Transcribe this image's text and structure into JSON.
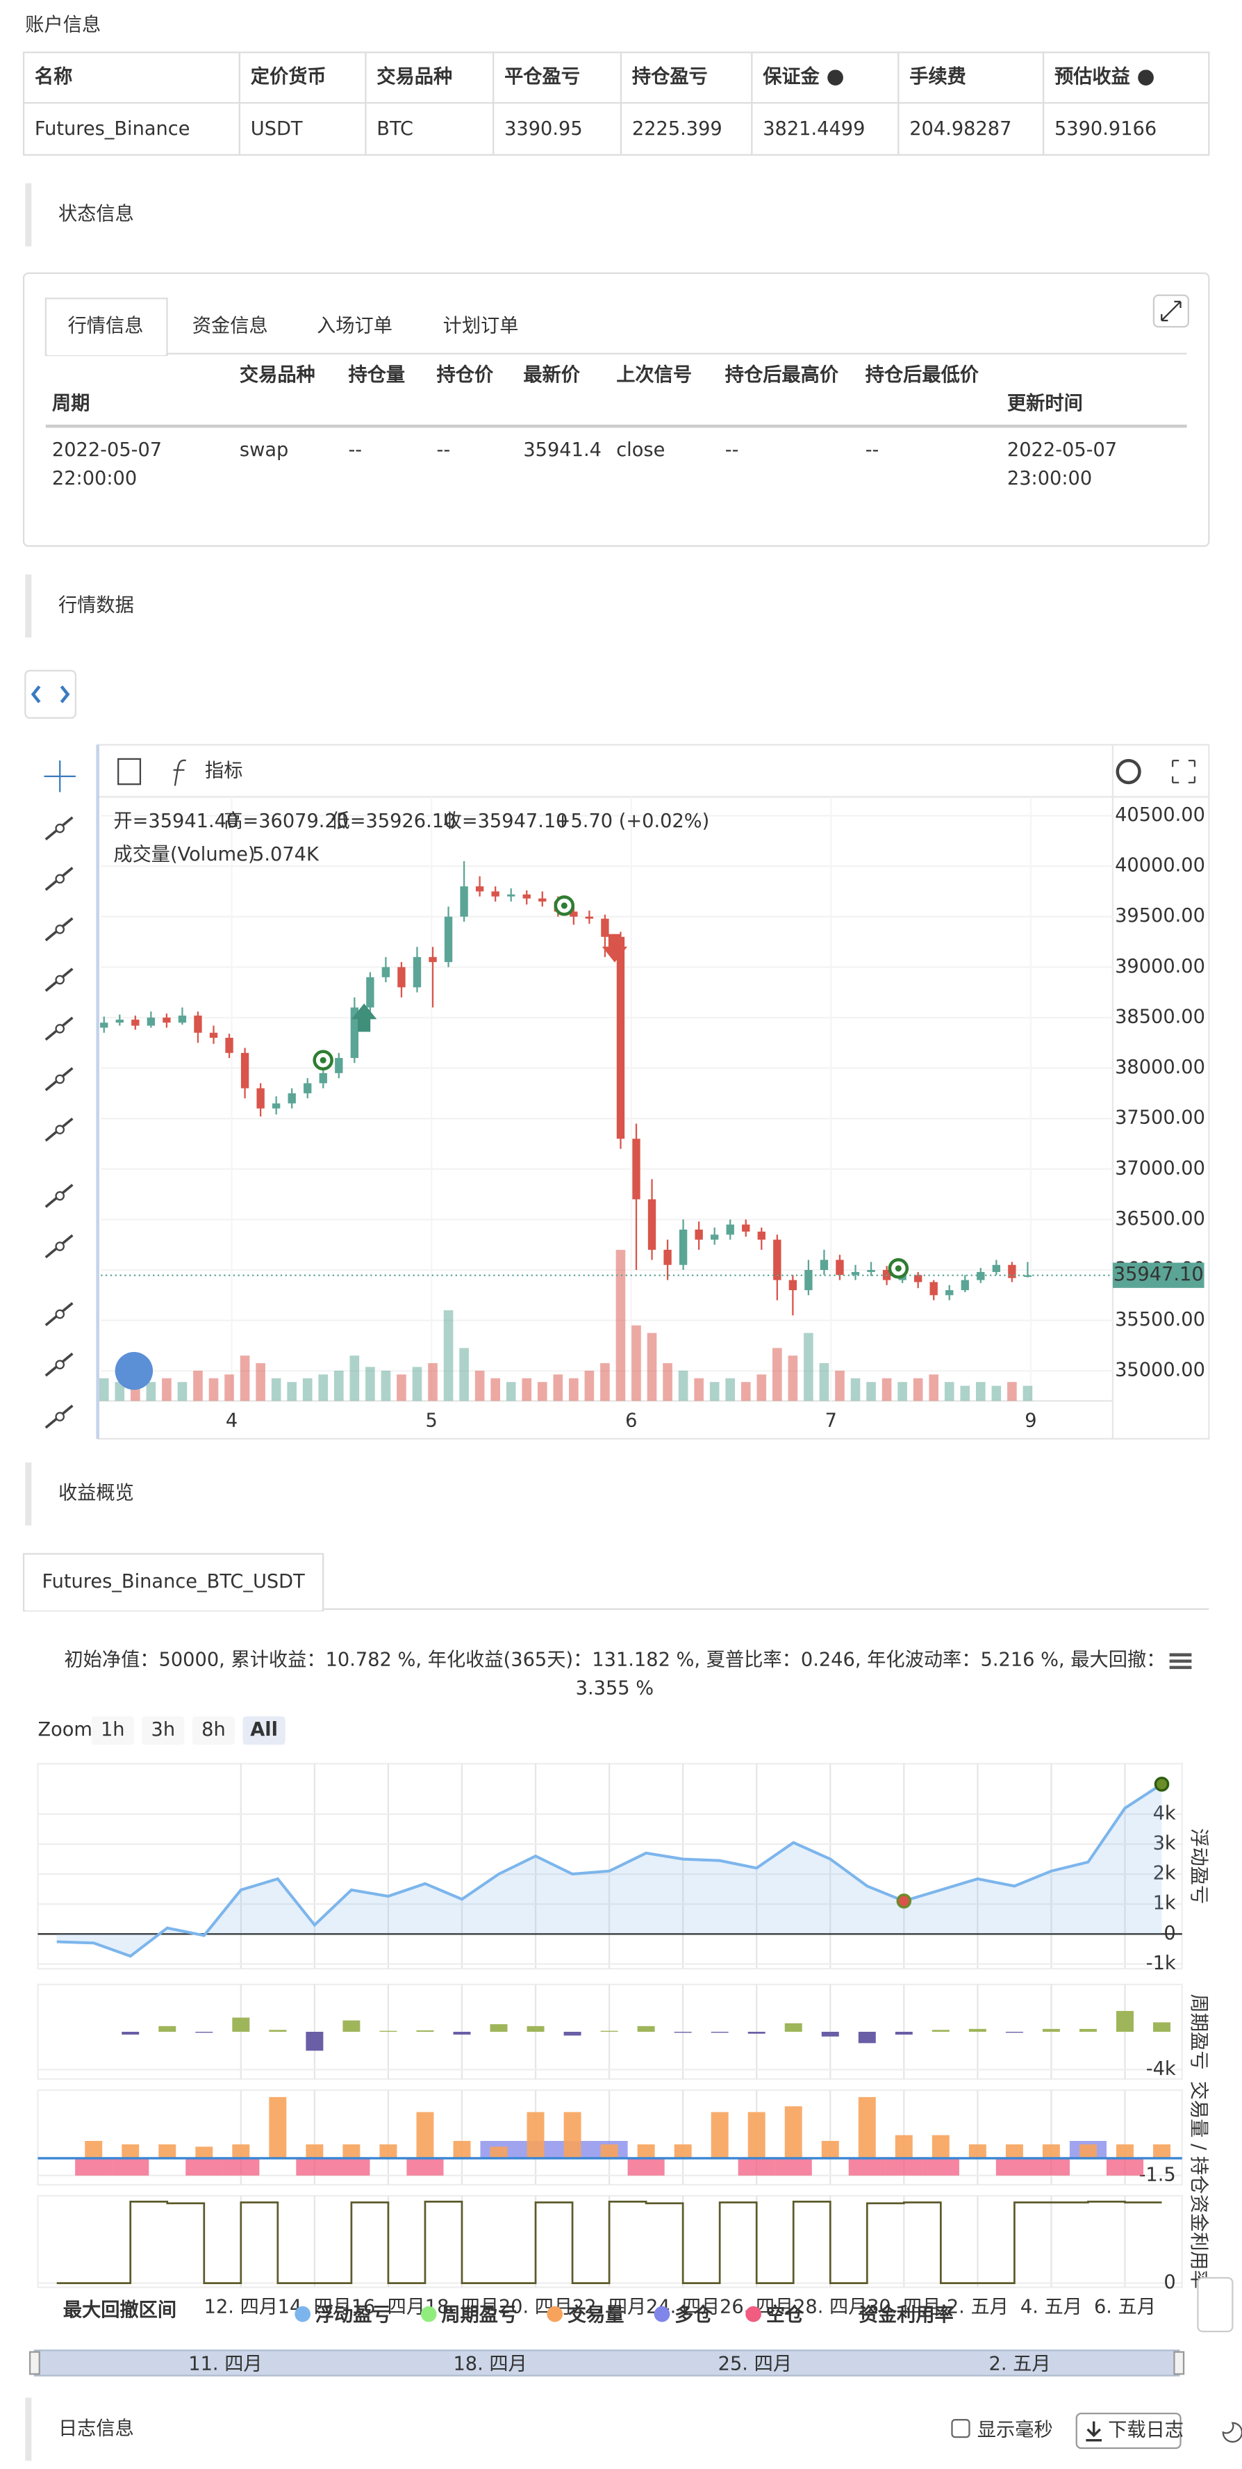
{
  "account": {
    "title": "账户信息",
    "headers": [
      "名称",
      "定价货币",
      "交易品种",
      "平仓盈亏",
      "持仓盈亏",
      "保证金",
      "手续费",
      "预估收益"
    ],
    "row": [
      "Futures_Binance",
      "USDT",
      "BTC",
      "3390.95",
      "2225.399",
      "3821.4499",
      "204.98287",
      "5390.9166"
    ]
  },
  "status": {
    "title": "状态信息",
    "tabs": [
      "行情信息",
      "资金信息",
      "入场订单",
      "计划订单"
    ],
    "headers": [
      "周期",
      "交易品种",
      "持仓量",
      "持仓价",
      "最新价",
      "上次信号",
      "持仓后最高价",
      "持仓后最低价",
      "更新时间"
    ],
    "row": [
      "2022-05-07 22:00:00",
      "swap",
      "--",
      "--",
      "35941.4",
      "close",
      "--",
      "--",
      "2022-05-07 23:00:00"
    ]
  },
  "market": {
    "title": "行情数据",
    "indicator": "指标",
    "ohlc": [
      "开=35941.40",
      "高=36079.20",
      "低=35926.10",
      "收=35947.10",
      "+5.70 (+0.02%)"
    ],
    "volume_name": "成交量(Volume)",
    "volume_value": "5.074K",
    "last_price": "35947.10",
    "ylim": [
      34703,
      40687
    ],
    "yticks": [
      {
        "value": 40500,
        "label": "40500.00"
      },
      {
        "value": 40000,
        "label": "40000.00"
      },
      {
        "value": 39500,
        "label": "39500.00"
      },
      {
        "value": 39000,
        "label": "39000.00"
      },
      {
        "value": 38500,
        "label": "38500.00"
      },
      {
        "value": 38000,
        "label": "38000.00"
      },
      {
        "value": 37500,
        "label": "37500.00"
      },
      {
        "value": 37000,
        "label": "37000.00"
      },
      {
        "value": 36500,
        "label": "36500.00"
      },
      {
        "value": 36000,
        "label": "36000.00"
      },
      {
        "value": 35500,
        "label": "35500.00"
      },
      {
        "value": 35000,
        "label": "35000.00"
      }
    ],
    "xticks": [
      "4",
      "5",
      "6",
      "7",
      "9"
    ],
    "up_color": "#5ba596",
    "down_color": "#d9544a",
    "candles": [
      [
        38400,
        38510,
        38350,
        38450
      ],
      [
        38450,
        38530,
        38420,
        38480
      ],
      [
        38480,
        38520,
        38380,
        38420
      ],
      [
        38420,
        38560,
        38400,
        38500
      ],
      [
        38500,
        38540,
        38400,
        38450
      ],
      [
        38450,
        38600,
        38430,
        38520
      ],
      [
        38520,
        38560,
        38250,
        38350
      ],
      [
        38350,
        38420,
        38240,
        38300
      ],
      [
        38300,
        38340,
        38100,
        38150
      ],
      [
        38150,
        38200,
        37700,
        37800
      ],
      [
        37800,
        37850,
        37520,
        37600
      ],
      [
        37600,
        37720,
        37540,
        37650
      ],
      [
        37650,
        37800,
        37600,
        37750
      ],
      [
        37750,
        37900,
        37700,
        37850
      ],
      [
        37850,
        38000,
        37800,
        37950
      ],
      [
        37950,
        38150,
        37900,
        38100
      ],
      [
        38100,
        38700,
        38050,
        38600
      ],
      [
        38600,
        38950,
        38550,
        38900
      ],
      [
        38900,
        39100,
        38850,
        39000
      ],
      [
        39000,
        39050,
        38700,
        38800
      ],
      [
        38800,
        39200,
        38750,
        39100
      ],
      [
        39100,
        39200,
        38600,
        39050
      ],
      [
        39050,
        39600,
        39000,
        39500
      ],
      [
        39500,
        40050,
        39450,
        39800
      ],
      [
        39800,
        39900,
        39700,
        39750
      ],
      [
        39750,
        39800,
        39650,
        39700
      ],
      [
        39700,
        39780,
        39650,
        39720
      ],
      [
        39720,
        39760,
        39620,
        39680
      ],
      [
        39680,
        39750,
        39600,
        39650
      ],
      [
        39650,
        39700,
        39500,
        39550
      ],
      [
        39550,
        39600,
        39420,
        39500
      ],
      [
        39500,
        39560,
        39430,
        39480
      ],
      [
        39480,
        39520,
        39100,
        39300
      ],
      [
        39300,
        39350,
        37200,
        37300
      ],
      [
        37300,
        37450,
        36000,
        36700
      ],
      [
        36700,
        36900,
        36100,
        36200
      ],
      [
        36200,
        36300,
        35900,
        36050
      ],
      [
        36050,
        36500,
        36000,
        36400
      ],
      [
        36400,
        36480,
        36200,
        36300
      ],
      [
        36300,
        36420,
        36250,
        36350
      ],
      [
        36350,
        36500,
        36300,
        36450
      ],
      [
        36450,
        36500,
        36330,
        36380
      ],
      [
        36380,
        36420,
        36200,
        36300
      ],
      [
        36300,
        36350,
        35700,
        35900
      ],
      [
        35900,
        35950,
        35550,
        35800
      ],
      [
        35800,
        36100,
        35750,
        36000
      ],
      [
        36000,
        36200,
        35950,
        36100
      ],
      [
        36100,
        36150,
        35900,
        35950
      ],
      [
        35950,
        36050,
        35900,
        35980
      ],
      [
        35980,
        36080,
        35940,
        36000
      ],
      [
        36000,
        36040,
        35850,
        35900
      ],
      [
        35900,
        36000,
        35870,
        35950
      ],
      [
        35950,
        35980,
        35820,
        35880
      ],
      [
        35880,
        35900,
        35700,
        35750
      ],
      [
        35750,
        35850,
        35700,
        35800
      ],
      [
        35800,
        35950,
        35780,
        35900
      ],
      [
        35900,
        36020,
        35870,
        35980
      ],
      [
        35980,
        36100,
        35950,
        36050
      ],
      [
        36050,
        36080,
        35880,
        35920
      ],
      [
        35941.4,
        36079.2,
        35926.1,
        35947.1
      ]
    ],
    "volume_lim": [
      0,
      160
    ],
    "volumes": [
      6,
      5,
      7,
      5,
      6,
      5,
      8,
      6,
      7,
      12,
      10,
      6,
      5,
      6,
      7,
      8,
      12,
      9,
      8,
      7,
      9,
      10,
      24,
      14,
      8,
      6,
      5,
      6,
      5,
      7,
      6,
      8,
      10,
      40,
      20,
      18,
      10,
      8,
      6,
      5,
      6,
      5,
      7,
      14,
      12,
      18,
      10,
      8,
      6,
      5,
      6,
      5,
      6,
      7,
      5,
      4,
      5,
      4,
      5,
      4
    ]
  },
  "profit": {
    "title": "收益概览",
    "tab": "Futures_Binance_BTC_USDT",
    "summary": "初始净值：50000, 累计收益：10.782 %, 年化收益(365天)：131.182 %, 夏普比率：0.246, 年化波动率：5.216 %, 最大回撤：3.355 %",
    "zoom_label": "Zoom",
    "zoom_buttons": [
      "1h",
      "3h",
      "8h",
      "All"
    ],
    "dates": [
      "12. 四月",
      "14. 四月",
      "16. 四月",
      "18. 四月",
      "20. 四月",
      "22. 四月",
      "24. 四月",
      "26. 四月",
      "28. 四月",
      "30. 四月",
      "2. 五月",
      "4. 五月",
      "6. 五月"
    ],
    "navigator_dates": [
      "11. 四月",
      "18. 四月",
      "25. 四月",
      "2. 五月"
    ],
    "drawdown_name": "最大回撤区间",
    "panel_titles": [
      "浮动盈亏",
      "周期盈亏",
      "交易量 / 持仓",
      "资金利用率"
    ],
    "float_pnl": {
      "name": "浮动盈亏",
      "color": "#7cb5ec",
      "ylim": [
        -1158,
        5684
      ],
      "yticks": [
        {
          "value": 4000,
          "label": "4k"
        },
        {
          "value": 3000,
          "label": "3k"
        },
        {
          "value": 2000,
          "label": "2k"
        },
        {
          "value": 1000,
          "label": "1k"
        },
        0,
        {
          "value": -1000,
          "label": "-1k"
        }
      ],
      "values": [
        -260,
        -300,
        -740,
        200,
        -50,
        1470,
        1840,
        300,
        1470,
        1260,
        1680,
        1160,
        2000,
        2600,
        2000,
        2100,
        2700,
        2500,
        2450,
        2200,
        3050,
        2500,
        1600,
        1100,
        1470,
        1840,
        1600,
        2100,
        2400,
        4200,
        5000
      ]
    },
    "period_pnl": {
      "name": "周期盈亏",
      "color": "#90ed7d",
      "bar_color": "#9fb55a",
      "negative_color": "#6a5ea6",
      "ylim": [
        -5000,
        5000
      ],
      "yticks": [
        {
          "value": -4000,
          "label": "-4k"
        }
      ],
      "values": [
        0,
        0,
        -300,
        600,
        -100,
        1500,
        200,
        -2000,
        1200,
        100,
        150,
        -300,
        800,
        600,
        -400,
        100,
        600,
        -100,
        -100,
        -200,
        900,
        -500,
        -1200,
        -300,
        200,
        300,
        -100,
        300,
        300,
        2200,
        1000
      ]
    },
    "volume": {
      "name": "交易量",
      "color": "#f7a35c",
      "ylim": [
        -2.3,
        5.9
      ],
      "yticks": [
        -1.5
      ],
      "values": [
        0,
        1.5,
        1.2,
        1.2,
        1,
        1.2,
        5.3,
        1.2,
        1.2,
        1.2,
        4,
        1.5,
        1,
        4,
        4,
        1.2,
        1.2,
        1.2,
        4,
        4,
        4.5,
        1.5,
        5.3,
        2,
        2,
        1.2,
        1.2,
        1.2,
        1.2,
        1.2,
        1.2
      ]
    },
    "long": {
      "name": "多仓",
      "color": "#8085e9",
      "values": [
        null,
        null,
        null,
        null,
        null,
        null,
        null,
        null,
        null,
        null,
        null,
        null,
        1.5,
        1.5,
        1.5,
        1.5,
        null,
        null,
        null,
        null,
        null,
        null,
        null,
        null,
        null,
        null,
        null,
        null,
        1.5,
        null,
        null
      ]
    },
    "short": {
      "name": "空仓",
      "color": "#f15c80",
      "values": [
        null,
        -1.5,
        -1.5,
        null,
        -1.5,
        -1.5,
        null,
        -1.5,
        -1.5,
        null,
        -1.5,
        null,
        null,
        null,
        null,
        null,
        -1.5,
        null,
        null,
        -1.5,
        -1.5,
        null,
        -1.5,
        -1.5,
        -1.5,
        null,
        -1.5,
        -1.5,
        null,
        -1.5,
        null
      ]
    },
    "utilization": {
      "name": "资金利用率",
      "color": "#5c5a2a",
      "ylim": [
        -0.05,
        1.05
      ],
      "yticks": [
        0
      ],
      "values": [
        0,
        0,
        0.98,
        0.96,
        0,
        0.97,
        0,
        0,
        0.97,
        0,
        0.98,
        0,
        0,
        0.97,
        0,
        0.98,
        0.96,
        0,
        0.97,
        0,
        0.98,
        0,
        0.96,
        0.97,
        0,
        0,
        0.97,
        0.97,
        0.98,
        0.97,
        0.97
      ]
    }
  },
  "log": {
    "title": "日志信息",
    "checkbox": "显示毫秒",
    "download": "下载日志"
  }
}
